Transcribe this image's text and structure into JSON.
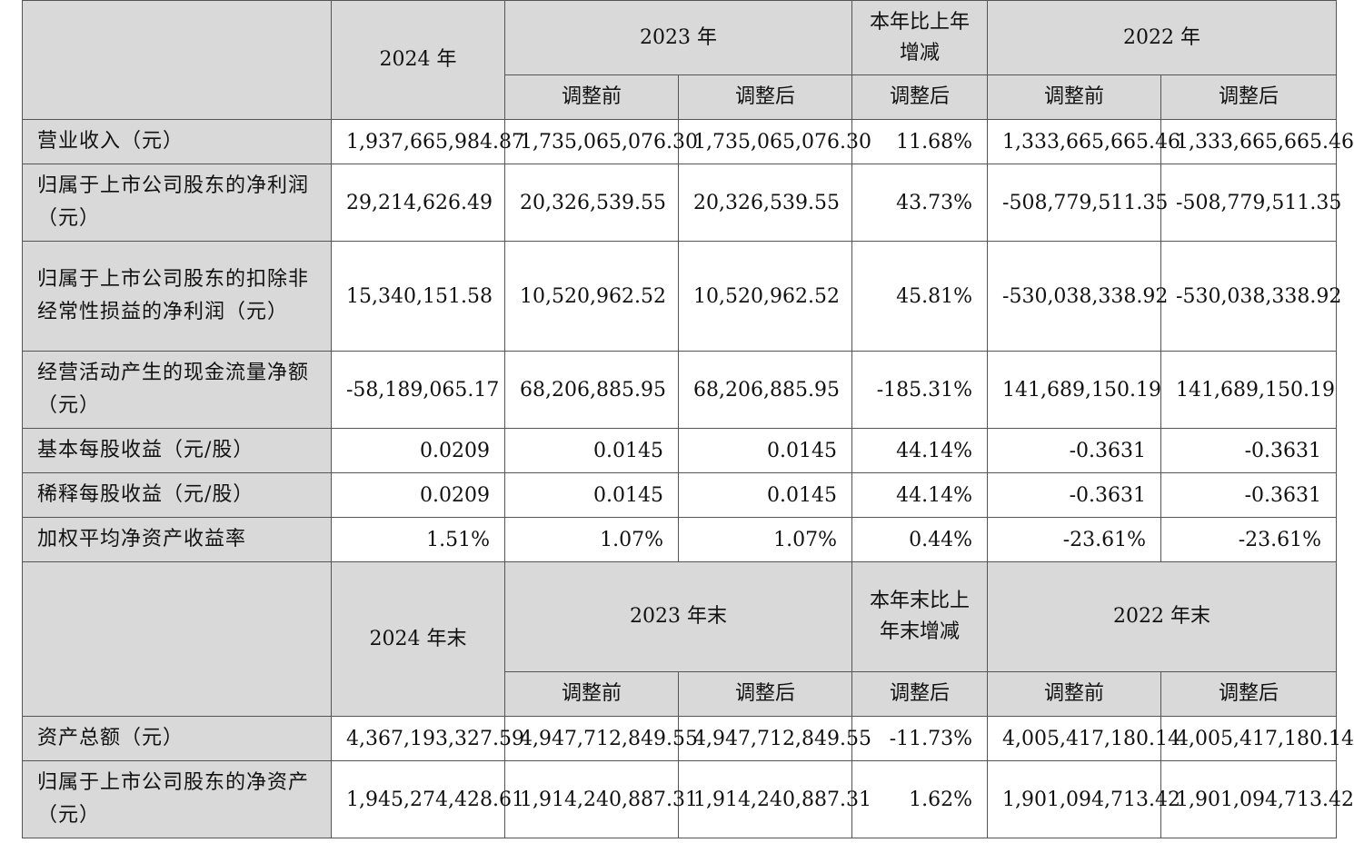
{
  "section1": {
    "header": {
      "col_2024": "2024 年",
      "col_2023": "2023 年",
      "col_change": "本年比上年增减",
      "col_2022": "2022 年",
      "sub_before": "调整前",
      "sub_after": "调整后"
    },
    "rows": [
      {
        "label": "营业收入（元）",
        "v2024": "1,937,665,984.87",
        "v2023_before": "1,735,065,076.30",
        "v2023_after": "1,735,065,076.30",
        "change": "11.68%",
        "v2022_before": "1,333,665,665.46",
        "v2022_after": "1,333,665,665.46"
      },
      {
        "label": "归属于上市公司股东的净利润（元）",
        "v2024": "29,214,626.49",
        "v2023_before": "20,326,539.55",
        "v2023_after": "20,326,539.55",
        "change": "43.73%",
        "v2022_before": "-508,779,511.35",
        "v2022_after": "-508,779,511.35"
      },
      {
        "label": "归属于上市公司股东的扣除非经常性损益的净利润（元）",
        "v2024": "15,340,151.58",
        "v2023_before": "10,520,962.52",
        "v2023_after": "10,520,962.52",
        "change": "45.81%",
        "v2022_before": "-530,038,338.92",
        "v2022_after": "-530,038,338.92"
      },
      {
        "label": "经营活动产生的现金流量净额（元）",
        "v2024": "-58,189,065.17",
        "v2023_before": "68,206,885.95",
        "v2023_after": "68,206,885.95",
        "change": "-185.31%",
        "v2022_before": "141,689,150.19",
        "v2022_after": "141,689,150.19"
      },
      {
        "label": "基本每股收益（元/股）",
        "v2024": "0.0209",
        "v2023_before": "0.0145",
        "v2023_after": "0.0145",
        "change": "44.14%",
        "v2022_before": "-0.3631",
        "v2022_after": "-0.3631"
      },
      {
        "label": "稀释每股收益（元/股）",
        "v2024": "0.0209",
        "v2023_before": "0.0145",
        "v2023_after": "0.0145",
        "change": "44.14%",
        "v2022_before": "-0.3631",
        "v2022_after": "-0.3631"
      },
      {
        "label": "加权平均净资产收益率",
        "v2024": "1.51%",
        "v2023_before": "1.07%",
        "v2023_after": "1.07%",
        "change": "0.44%",
        "v2022_before": "-23.61%",
        "v2022_after": "-23.61%"
      }
    ]
  },
  "section2": {
    "header": {
      "col_2024": "2024 年末",
      "col_2023": "2023 年末",
      "col_change": "本年末比上年末增减",
      "col_2022": "2022 年末",
      "sub_before": "调整前",
      "sub_after": "调整后"
    },
    "rows": [
      {
        "label": "资产总额（元）",
        "v2024": "4,367,193,327.59",
        "v2023_before": "4,947,712,849.55",
        "v2023_after": "4,947,712,849.55",
        "change": "-11.73%",
        "v2022_before": "4,005,417,180.14",
        "v2022_after": "4,005,417,180.14"
      },
      {
        "label": "归属于上市公司股东的净资产（元）",
        "v2024": "1,945,274,428.61",
        "v2023_before": "1,914,240,887.31",
        "v2023_after": "1,914,240,887.31",
        "change": "1.62%",
        "v2022_before": "1,901,094,713.42",
        "v2022_after": "1,901,094,713.42"
      }
    ]
  }
}
